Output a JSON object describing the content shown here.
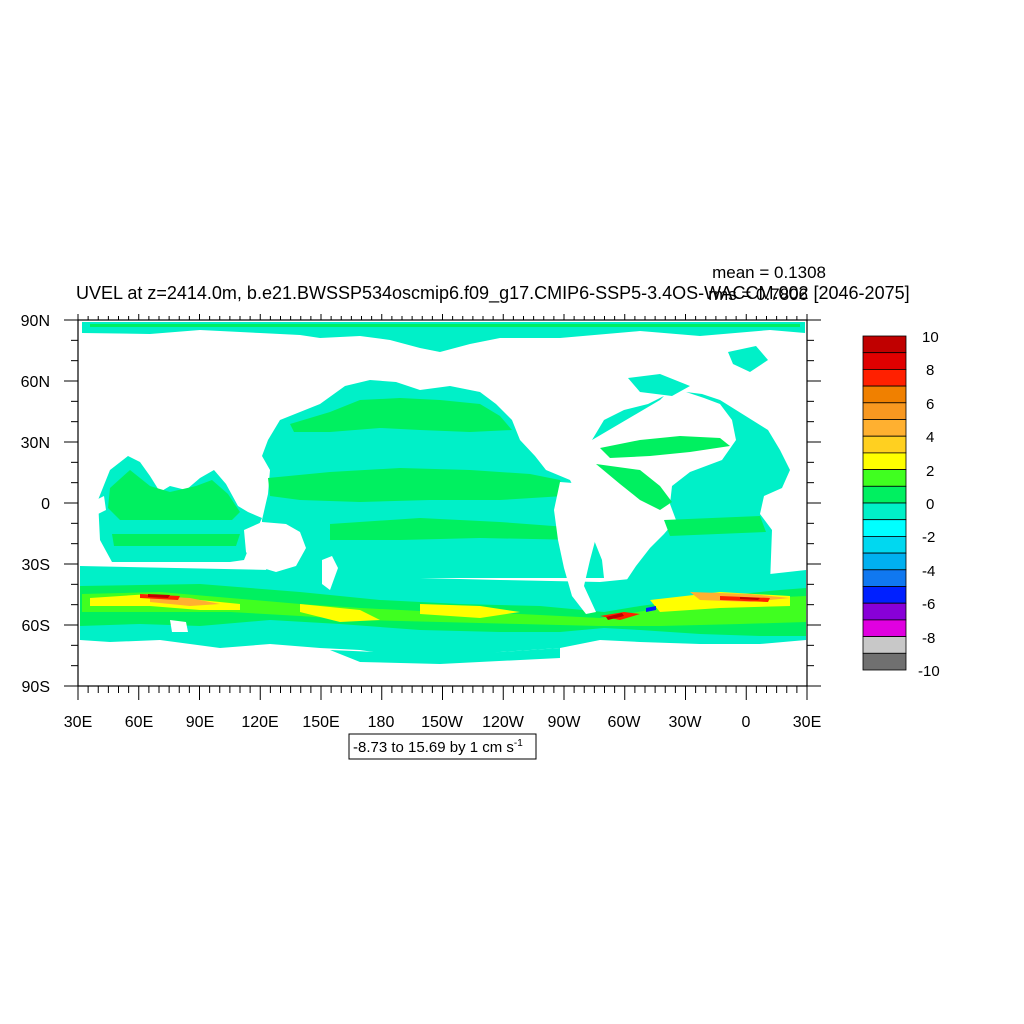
{
  "title": "UVEL at z=2414.0m, b.e21.BWSSP534oscmip6.f09_g17.CMIP6-SSP5-3.4OS-WACCM.002 [2046-2075]",
  "stats": {
    "mean": "mean = 0.1308",
    "rms": "rms = 0.7806"
  },
  "range_label": "-8.73 to 15.69 by 1 cm s",
  "range_unit_exp": "-1",
  "y_ticks": [
    "90N",
    "60N",
    "30N",
    "0",
    "30S",
    "60S",
    "90S"
  ],
  "x_ticks": [
    "30E",
    "60E",
    "90E",
    "120E",
    "150E",
    "180",
    "150W",
    "120W",
    "90W",
    "60W",
    "30W",
    "0",
    "30E"
  ],
  "colorbar": {
    "labels": [
      "10",
      "8",
      "6",
      "4",
      "2",
      "0",
      "-2",
      "-4",
      "-6",
      "-8",
      "-10"
    ],
    "colors": [
      "#c00000",
      "#e00000",
      "#ff2000",
      "#f08000",
      "#f89820",
      "#ffb030",
      "#ffd020",
      "#ffff00",
      "#40ff20",
      "#00f060",
      "#00f0c8",
      "#00ffff",
      "#00d8f0",
      "#00b0f0",
      "#1078f0",
      "#0020ff",
      "#8800d8",
      "#e000e0",
      "#c8c8c8",
      "#707070"
    ]
  },
  "field_colors": {
    "weak_pos": "#00f060",
    "weak_neg": "#00f0c8",
    "pos_2": "#40ff20",
    "pos_4": "#ffff00",
    "pos_6": "#ffb030",
    "pos_8": "#ff2000",
    "pos_10": "#c00000",
    "neg_6": "#0020ff"
  }
}
